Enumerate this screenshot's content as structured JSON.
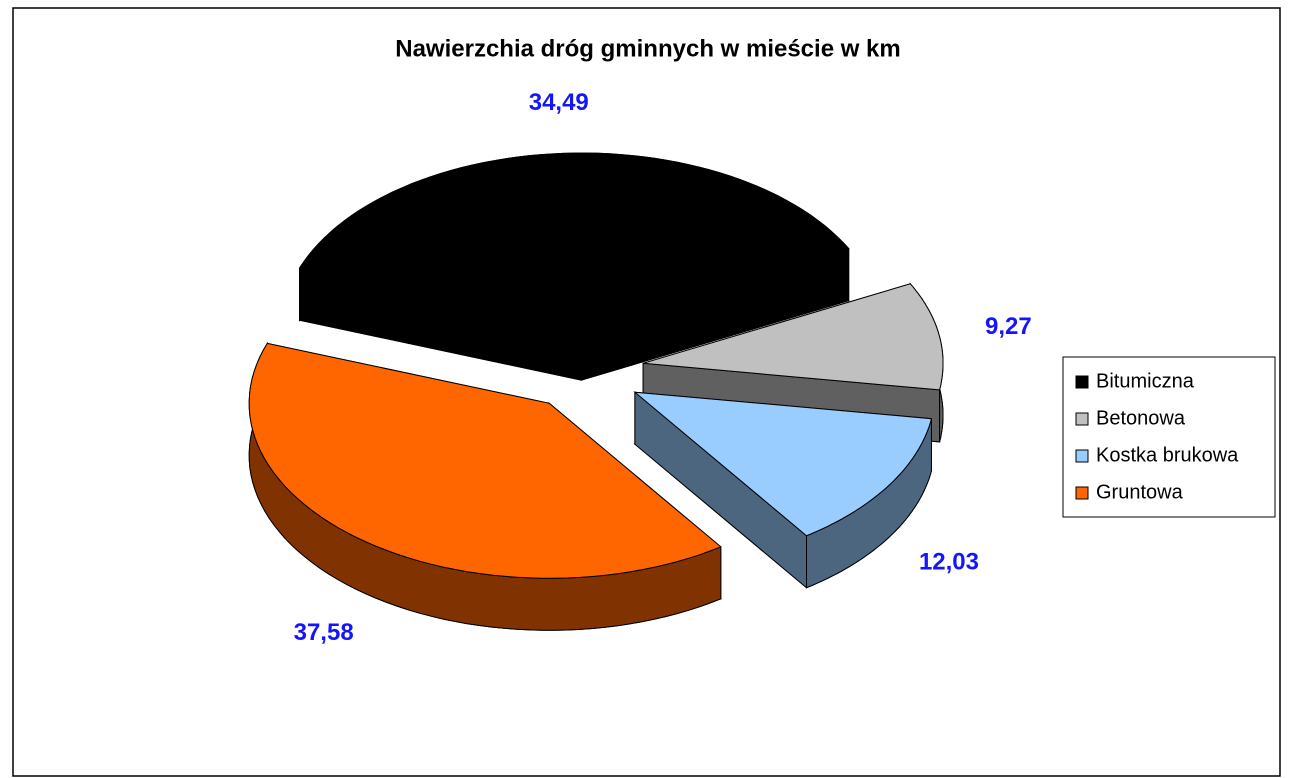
{
  "chart_data": {
    "type": "pie3d",
    "title": "Nawierzchia dróg gminnych w mieście w km",
    "categories": [
      "Bitumiczna",
      "Betonowa",
      "Kostka brukowa",
      "Gruntowa"
    ],
    "values": [
      34.49,
      9.27,
      12.03,
      37.58
    ],
    "value_labels": [
      "34,49",
      "9,27",
      "12,03",
      "37,58"
    ],
    "colors": [
      "#000000",
      "#c0c0c0",
      "#99ccff",
      "#ff6600"
    ],
    "label_color": "#1414ff",
    "legend": "right"
  }
}
